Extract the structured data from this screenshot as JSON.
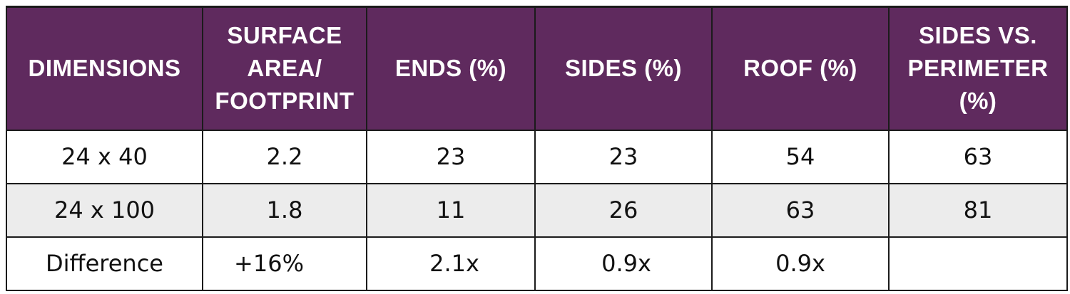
{
  "headers": [
    [
      "DIMENSIONS"
    ],
    [
      "SURFACE",
      "AREA/",
      "FOOTPRINT"
    ],
    [
      "ENDS (%)"
    ],
    [
      "SIDES (%)"
    ],
    [
      "ROOF (%)"
    ],
    [
      "SIDES VS.",
      "PERIMETER",
      "(%)"
    ]
  ],
  "rows": [
    [
      "24 x 40",
      "2.2",
      "23",
      "23",
      "54",
      "63"
    ],
    [
      "24 x 100",
      "1.8",
      "11",
      "26",
      "63",
      "81"
    ],
    [
      "Difference",
      "+16%",
      "2.1x",
      "0.9x",
      "0.9x",
      ""
    ]
  ],
  "colors": {
    "header_bg": "#5f2a5e",
    "header_text": "#ffffff",
    "alt_row_bg": "#ececec",
    "border": "#1b1b1b"
  }
}
